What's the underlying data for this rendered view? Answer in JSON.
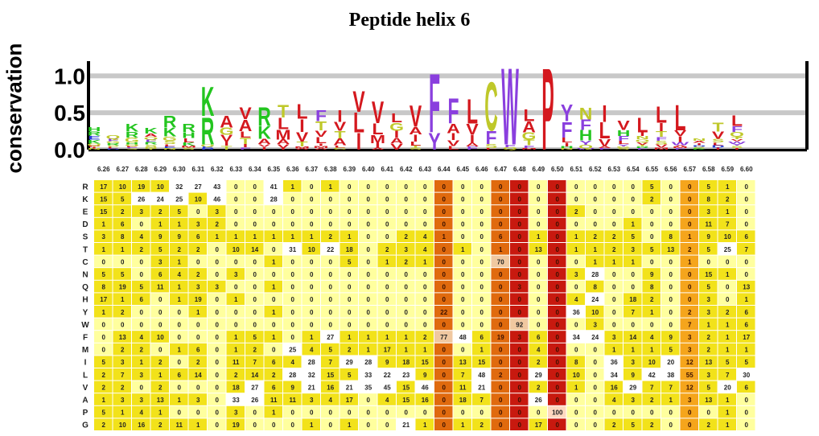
{
  "chart_data": {
    "type": "heatmap",
    "title": "Peptide helix 6",
    "logo": {
      "ylabel": "conservation",
      "yticks": [
        "0.0",
        "0.5",
        "1.0"
      ],
      "ylim": [
        0,
        1.2
      ],
      "grid": true
    },
    "positions": [
      "6.26",
      "6.27",
      "6.28",
      "6.29",
      "6.30",
      "6.31",
      "6.32",
      "6.33",
      "6.34",
      "6.35",
      "6.36",
      "6.37",
      "6.38",
      "6.39",
      "6.40",
      "6.41",
      "6.42",
      "6.43",
      "6.44",
      "6.45",
      "6.46",
      "6.47",
      "6.48",
      "6.49",
      "6.50",
      "6.51",
      "6.52",
      "6.53",
      "6.54",
      "6.55",
      "6.56",
      "6.57",
      "6.58",
      "6.59",
      "6.60"
    ],
    "residues": [
      "R",
      "K",
      "E",
      "D",
      "S",
      "T",
      "C",
      "N",
      "Q",
      "H",
      "Y",
      "W",
      "F",
      "M",
      "I",
      "L",
      "V",
      "A",
      "P",
      "G"
    ],
    "matrix": [
      [
        17,
        10,
        19,
        10,
        32,
        27,
        43,
        0,
        0,
        41,
        1,
        0,
        1,
        0,
        0,
        0,
        0,
        0,
        0,
        0,
        0,
        0,
        0,
        0,
        0,
        0,
        0,
        0,
        0,
        5,
        0,
        0,
        5,
        1,
        0
      ],
      [
        15,
        5,
        26,
        24,
        25,
        10,
        46,
        0,
        0,
        28,
        0,
        0,
        0,
        0,
        0,
        0,
        0,
        0,
        0,
        0,
        0,
        0,
        0,
        0,
        0,
        0,
        0,
        0,
        0,
        2,
        0,
        0,
        8,
        2,
        0
      ],
      [
        15,
        2,
        3,
        2,
        5,
        0,
        3,
        0,
        0,
        0,
        0,
        0,
        0,
        0,
        0,
        0,
        0,
        0,
        0,
        0,
        0,
        0,
        0,
        0,
        0,
        2,
        0,
        0,
        0,
        0,
        0,
        0,
        3,
        1,
        0
      ],
      [
        1,
        6,
        0,
        1,
        1,
        3,
        2,
        0,
        0,
        0,
        0,
        0,
        0,
        0,
        0,
        0,
        0,
        0,
        0,
        0,
        0,
        0,
        0,
        0,
        0,
        0,
        0,
        0,
        1,
        0,
        0,
        0,
        11,
        7,
        0
      ],
      [
        3,
        8,
        4,
        9,
        9,
        6,
        1,
        1,
        1,
        1,
        1,
        1,
        2,
        1,
        0,
        0,
        2,
        4,
        1,
        0,
        0,
        6,
        0,
        1,
        0,
        1,
        2,
        2,
        5,
        0,
        8,
        1,
        9,
        10,
        6
      ],
      [
        1,
        1,
        2,
        5,
        2,
        2,
        0,
        10,
        14,
        0,
        31,
        10,
        22,
        18,
        0,
        2,
        3,
        4,
        0,
        1,
        0,
        1,
        0,
        13,
        0,
        1,
        1,
        2,
        3,
        5,
        13,
        2,
        5,
        25,
        7
      ],
      [
        0,
        0,
        0,
        3,
        1,
        0,
        0,
        0,
        0,
        1,
        0,
        0,
        0,
        5,
        0,
        1,
        2,
        1,
        0,
        0,
        0,
        70,
        0,
        0,
        0,
        0,
        1,
        1,
        1,
        0,
        0,
        1,
        0,
        0,
        0
      ],
      [
        5,
        5,
        0,
        6,
        4,
        2,
        0,
        3,
        0,
        0,
        0,
        0,
        0,
        0,
        0,
        0,
        0,
        0,
        0,
        0,
        0,
        0,
        0,
        0,
        0,
        3,
        28,
        0,
        0,
        9,
        0,
        0,
        15,
        1,
        0
      ],
      [
        8,
        19,
        5,
        11,
        1,
        3,
        3,
        0,
        0,
        1,
        0,
        0,
        0,
        0,
        0,
        0,
        0,
        0,
        0,
        0,
        0,
        0,
        3,
        0,
        0,
        0,
        8,
        0,
        0,
        8,
        0,
        0,
        5,
        0,
        13
      ],
      [
        17,
        1,
        6,
        0,
        1,
        19,
        0,
        1,
        0,
        0,
        0,
        0,
        0,
        0,
        0,
        0,
        0,
        0,
        0,
        0,
        0,
        0,
        0,
        0,
        0,
        4,
        24,
        0,
        18,
        2,
        0,
        0,
        3,
        0,
        1
      ],
      [
        1,
        2,
        0,
        0,
        0,
        1,
        0,
        0,
        0,
        1,
        0,
        0,
        0,
        0,
        0,
        0,
        0,
        0,
        22,
        0,
        0,
        0,
        0,
        0,
        0,
        36,
        10,
        0,
        7,
        1,
        0,
        2,
        3,
        2,
        6
      ],
      [
        0,
        0,
        0,
        0,
        0,
        0,
        0,
        0,
        0,
        0,
        0,
        0,
        0,
        0,
        0,
        0,
        0,
        0,
        0,
        0,
        0,
        0,
        92,
        0,
        0,
        0,
        3,
        0,
        0,
        0,
        0,
        7,
        1,
        1,
        6
      ],
      [
        0,
        13,
        4,
        10,
        0,
        0,
        0,
        1,
        5,
        1,
        0,
        1,
        27,
        1,
        1,
        1,
        1,
        2,
        77,
        48,
        6,
        19,
        3,
        6,
        0,
        34,
        24,
        3,
        14,
        4,
        9,
        3,
        2,
        1,
        17
      ],
      [
        0,
        2,
        2,
        0,
        1,
        6,
        0,
        1,
        2,
        0,
        25,
        4,
        5,
        2,
        1,
        17,
        1,
        1,
        0,
        0,
        1,
        0,
        0,
        4,
        0,
        0,
        0,
        1,
        1,
        1,
        5,
        3,
        2,
        1,
        1
      ],
      [
        5,
        3,
        1,
        2,
        0,
        2,
        0,
        11,
        7,
        6,
        4,
        28,
        7,
        29,
        28,
        9,
        18,
        15,
        0,
        13,
        15,
        0,
        0,
        2,
        0,
        8,
        0,
        36,
        3,
        10,
        20,
        12,
        13,
        5,
        5
      ],
      [
        2,
        7,
        3,
        1,
        6,
        14,
        0,
        2,
        14,
        2,
        28,
        32,
        15,
        5,
        33,
        22,
        23,
        9,
        0,
        7,
        48,
        2,
        0,
        29,
        0,
        10,
        0,
        34,
        9,
        42,
        38,
        55,
        3,
        7,
        30
      ],
      [
        2,
        2,
        0,
        2,
        0,
        0,
        0,
        18,
        27,
        6,
        9,
        21,
        16,
        21,
        35,
        45,
        15,
        46,
        0,
        11,
        21,
        0,
        0,
        2,
        0,
        1,
        0,
        16,
        29,
        7,
        7,
        12,
        5,
        20,
        6
      ],
      [
        1,
        3,
        3,
        13,
        1,
        3,
        0,
        33,
        26,
        11,
        11,
        3,
        4,
        17,
        0,
        4,
        15,
        16,
        0,
        18,
        7,
        0,
        0,
        26,
        0,
        0,
        0,
        4,
        3,
        2,
        1,
        3,
        13,
        1,
        0
      ],
      [
        5,
        1,
        4,
        1,
        0,
        0,
        0,
        3,
        0,
        1,
        0,
        0,
        0,
        0,
        0,
        0,
        0,
        0,
        0,
        0,
        0,
        0,
        0,
        0,
        100,
        0,
        0,
        0,
        0,
        0,
        0,
        0,
        0,
        1,
        0
      ],
      [
        2,
        10,
        16,
        2,
        11,
        1,
        0,
        19,
        0,
        0,
        0,
        1,
        0,
        1,
        0,
        0,
        21,
        1,
        0,
        1,
        2,
        0,
        0,
        17,
        0,
        0,
        0,
        2,
        5,
        2,
        0,
        0,
        2,
        1,
        0
      ]
    ],
    "colors": {
      "cell_low": "#ffff9e",
      "cell_mid": "#f2e21a",
      "cell_col_orange": "#e06a0e",
      "cell_col_red": "#c8190f",
      "cell_col_lightorange": "#f5a51c",
      "hot_pink": "#f5a0a0",
      "logo_hydrophobic": "#d4181e",
      "logo_aromatic": "#8a3fde",
      "logo_basic": "#23c51f",
      "logo_polar": "#bfc82a",
      "logo_acidic": "#2a3fd6"
    }
  }
}
